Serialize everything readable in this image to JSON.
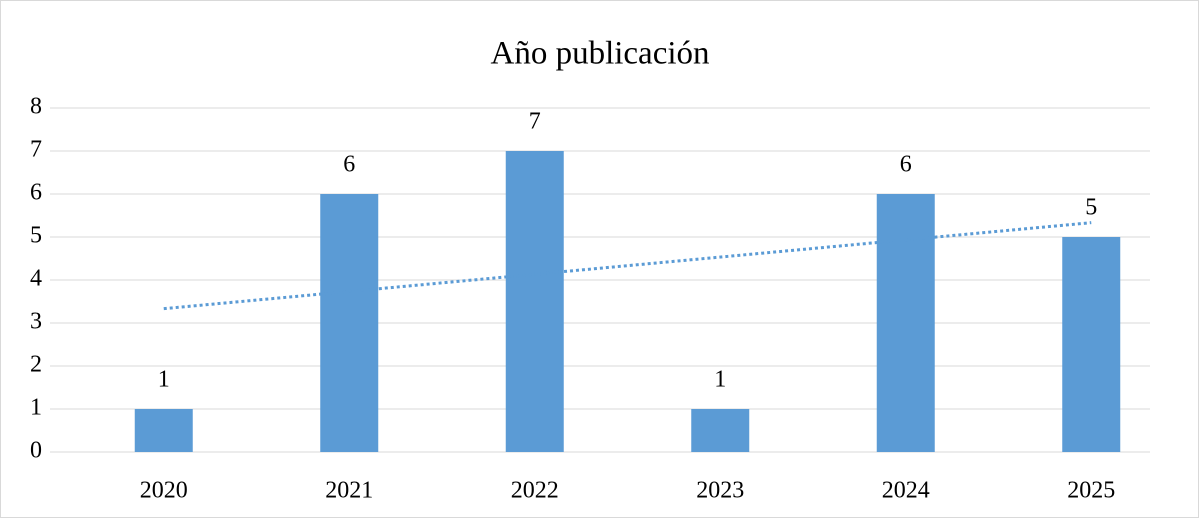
{
  "chart_data": {
    "type": "bar",
    "title": "Año publicación",
    "categories": [
      "2020",
      "2021",
      "2022",
      "2023",
      "2024",
      "2025"
    ],
    "values": [
      1,
      6,
      7,
      1,
      6,
      5
    ],
    "color": "#5b9bd5",
    "ylim": [
      0,
      8
    ],
    "yticks": [
      0,
      1,
      2,
      3,
      4,
      5,
      6,
      7,
      8
    ],
    "grid": true,
    "trendline": "linear"
  }
}
